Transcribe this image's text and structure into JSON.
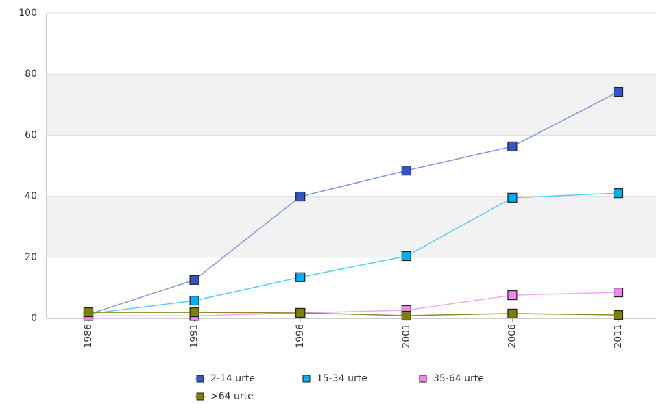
{
  "chart_data": {
    "type": "line",
    "categories": [
      "1986",
      "1991",
      "1996",
      "2001",
      "2006",
      "2011"
    ],
    "series": [
      {
        "name": "2-14 urte",
        "color": "#3355cc",
        "line_color": "#7f95dd",
        "values": [
          1.3,
          12.6,
          39.9,
          48.4,
          56.3,
          74.2
        ]
      },
      {
        "name": "15-34 urte",
        "color": "#00b0f0",
        "line_color": "#55ccf5",
        "values": [
          1.5,
          5.8,
          13.5,
          20.4,
          39.5,
          41.0
        ]
      },
      {
        "name": "35-64 urte",
        "color": "#ee88ee",
        "line_color": "#f0a8f0",
        "values": [
          0.8,
          0.8,
          1.8,
          2.7,
          7.6,
          8.5
        ]
      },
      {
        "name": ">64 urte",
        "color": "#808000",
        "line_color": "#8a8a2a",
        "values": [
          2.0,
          2.0,
          1.8,
          0.9,
          1.6,
          1.1
        ]
      }
    ],
    "ylim": [
      0,
      100
    ],
    "yticks": [
      0,
      20,
      40,
      60,
      80,
      100
    ],
    "grid": true
  }
}
